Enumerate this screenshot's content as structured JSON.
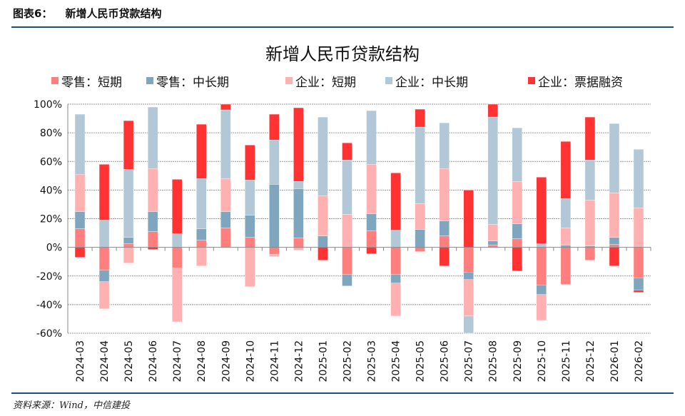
{
  "header": {
    "figure_label": "图表6：",
    "figure_title": "新增人民币贷款结构"
  },
  "source": "资料来源：Wind，中信建投",
  "chart_data": {
    "type": "bar",
    "stacked": true,
    "title": "新增人民币贷款结构",
    "xlabel": "",
    "ylabel": "",
    "ylim": [
      -60,
      100
    ],
    "yticks": [
      -60,
      -40,
      -20,
      0,
      20,
      40,
      60,
      80,
      100
    ],
    "ytick_format": "percent",
    "grid": true,
    "legend_position": "top",
    "categories": [
      "2024-03",
      "2024-04",
      "2024-05",
      "2024-06",
      "2024-07",
      "2024-08",
      "2024-09",
      "2024-10",
      "2024-11",
      "2024-12",
      "2025-01",
      "2025-02",
      "2025-03",
      "2025-04",
      "2025-05",
      "2025-06",
      "2025-07",
      "2025-08",
      "2025-09",
      "2025-10",
      "2025-11",
      "2025-12",
      "2026-01",
      "2026-02"
    ],
    "series": [
      {
        "name": "零售：短期",
        "color": "#ff7f7f",
        "values": [
          13,
          -16,
          2.5,
          11,
          -14.5,
          5,
          13.5,
          7,
          -5,
          6.5,
          0,
          -19,
          11.5,
          -19,
          -3,
          8,
          -17.5,
          1.5,
          6,
          -26.5,
          -26,
          -9,
          2,
          -21.5
        ]
      },
      {
        "name": "零售：中长期",
        "color": "#7fa5bf",
        "values": [
          12,
          -8,
          4.5,
          14,
          0,
          8,
          11.5,
          15.5,
          44,
          34.5,
          8,
          -8,
          12,
          -6,
          12.5,
          10.5,
          -5,
          3,
          10.5,
          -6.5,
          1.5,
          1,
          5,
          -8.5
        ]
      },
      {
        "name": "企业：短期",
        "color": "#ffb0b0",
        "values": [
          26,
          -19,
          -11,
          30,
          -37.5,
          -13,
          23,
          -27.5,
          -1.5,
          -2,
          28,
          23,
          34.5,
          -23,
          18,
          36.5,
          -25.5,
          11.5,
          29.5,
          -18,
          12,
          32,
          31,
          27.5
        ]
      },
      {
        "name": "企业：中长期",
        "color": "#b3c8d6",
        "values": [
          42,
          19,
          47.5,
          43,
          9.5,
          35,
          48,
          24.5,
          31,
          5,
          55,
          38,
          37.5,
          12,
          53.5,
          32,
          -12,
          75,
          37.5,
          2.5,
          20.5,
          28,
          48.5,
          41
        ]
      },
      {
        "name": "企业：票据融资",
        "color": "#ff3333",
        "values": [
          -7,
          39,
          34,
          -1.5,
          38,
          38,
          5,
          24.5,
          18,
          51.5,
          -9,
          12,
          -4.5,
          40,
          12.5,
          -13,
          40,
          9,
          -16.5,
          46.5,
          40,
          30,
          -13,
          -1.5
        ]
      }
    ]
  }
}
